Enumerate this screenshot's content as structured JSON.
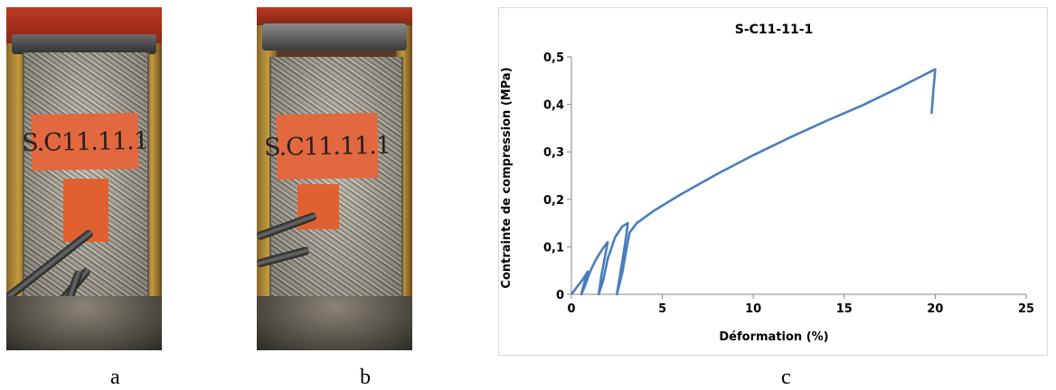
{
  "figure": {
    "panels": [
      {
        "caption": "a",
        "tag_text": "S.C11.11.1"
      },
      {
        "caption": "b",
        "tag_text": "S.C11.11.1"
      },
      {
        "caption": "c"
      }
    ]
  },
  "colors": {
    "series": "#4a7ebb",
    "tag": "#e2683f",
    "press": "#b73a22"
  },
  "chart_data": {
    "type": "line",
    "title": "S-C11-11-1",
    "xlabel": "Déformation (%)",
    "ylabel": "Contrainte de compression (MPa)",
    "xlim": [
      0,
      25
    ],
    "ylim": [
      0,
      0.5
    ],
    "xticks": [
      0,
      5,
      10,
      15,
      20,
      25
    ],
    "xtick_labels": [
      "0",
      "5",
      "10",
      "15",
      "20",
      "25"
    ],
    "yticks": [
      0,
      0.1,
      0.2,
      0.3,
      0.4,
      0.5
    ],
    "ytick_labels": [
      "0",
      "0,1",
      "0,2",
      "0,3",
      "0,4",
      "0,5"
    ],
    "grid": false,
    "legend": "none",
    "series": [
      {
        "color": "#4a7ebb",
        "points": [
          [
            0,
            0
          ],
          [
            0.3,
            0.015
          ],
          [
            0.6,
            0.03
          ],
          [
            0.9,
            0.048
          ],
          [
            0.75,
            0.03
          ],
          [
            0.62,
            0.012
          ],
          [
            0.55,
            0
          ],
          [
            0.75,
            0.018
          ],
          [
            1.0,
            0.045
          ],
          [
            1.3,
            0.07
          ],
          [
            1.7,
            0.095
          ],
          [
            2.0,
            0.11
          ],
          [
            1.85,
            0.08
          ],
          [
            1.65,
            0.04
          ],
          [
            1.5,
            0
          ],
          [
            1.75,
            0.03
          ],
          [
            2.0,
            0.075
          ],
          [
            2.4,
            0.12
          ],
          [
            2.8,
            0.143
          ],
          [
            3.1,
            0.15
          ],
          [
            3.0,
            0.12
          ],
          [
            2.8,
            0.07
          ],
          [
            2.65,
            0.035
          ],
          [
            2.5,
            0
          ],
          [
            2.8,
            0.045
          ],
          [
            3.05,
            0.1
          ],
          [
            3.2,
            0.13
          ],
          [
            3.6,
            0.15
          ],
          [
            4.5,
            0.175
          ],
          [
            6,
            0.21
          ],
          [
            8,
            0.253
          ],
          [
            10,
            0.293
          ],
          [
            12,
            0.33
          ],
          [
            14,
            0.365
          ],
          [
            16,
            0.398
          ],
          [
            18,
            0.435
          ],
          [
            20,
            0.474
          ],
          [
            19.9,
            0.43
          ],
          [
            19.8,
            0.38
          ]
        ]
      }
    ]
  }
}
